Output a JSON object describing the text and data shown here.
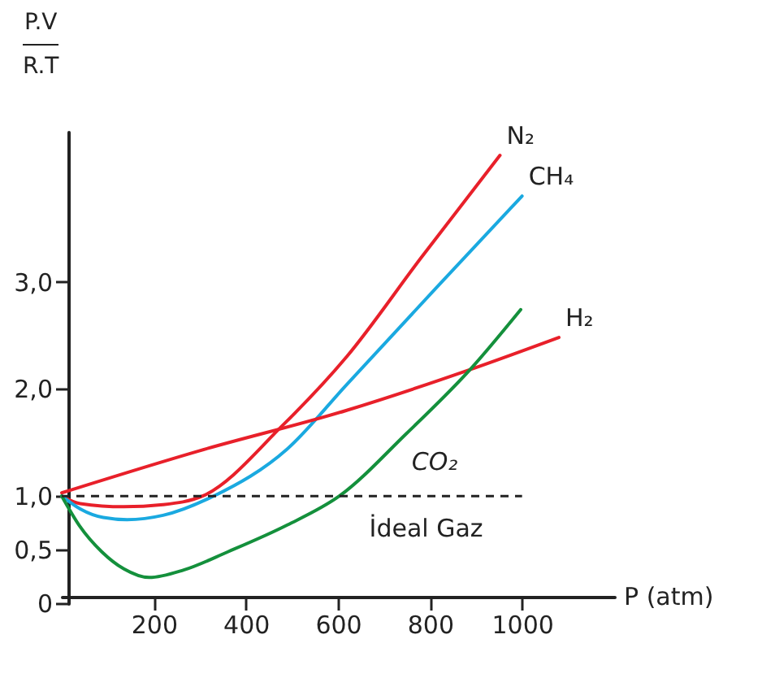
{
  "chart_data": {
    "type": "line",
    "xlabel": "P (atm)",
    "ylabel": "P.V/R.T",
    "xlim": [
      0,
      1200
    ],
    "xticks": [
      200,
      400,
      600,
      800,
      1000
    ],
    "ylim": [
      0,
      4.4
    ],
    "yticks": [
      {
        "value": 0,
        "label": "0"
      },
      {
        "value": 0.5,
        "label": "0,5"
      },
      {
        "value": 1,
        "label": "1,0"
      },
      {
        "value": 2,
        "label": "2,0"
      },
      {
        "value": 3,
        "label": "3,0"
      }
    ],
    "grid": false,
    "legend": false,
    "line_style": "solid",
    "marker": "none",
    "series": [
      {
        "name": "N₂",
        "color": "#e8202a",
        "x": [
          0,
          40,
          135,
          220,
          306,
          480,
          619,
          780,
          952
        ],
        "values": [
          1.0,
          0.93,
          0.9,
          0.92,
          1.0,
          1.66,
          2.3,
          3.22,
          4.18
        ]
      },
      {
        "name": "CH₄",
        "color": "#1aa9e0",
        "x": [
          0,
          40,
          90,
          142,
          220,
          330,
          490,
          619,
          813,
          1000
        ],
        "values": [
          1.0,
          0.88,
          0.8,
          0.78,
          0.82,
          1.0,
          1.44,
          2.04,
          2.94,
          3.8
        ]
      },
      {
        "name": "H₂",
        "color": "#e8202a",
        "x": [
          0,
          297,
          619,
          887,
          1080
        ],
        "values": [
          1.03,
          1.42,
          1.8,
          2.18,
          2.48
        ]
      },
      {
        "color": "#14903c",
        "x": [
          0,
          39,
          87,
          135,
          190,
          265,
          361,
          490,
          603,
          748,
          887,
          997
        ],
        "values": [
          1.0,
          0.72,
          0.48,
          0.32,
          0.24,
          0.31,
          0.48,
          0.73,
          1.0,
          1.58,
          2.18,
          2.74
        ]
      }
    ],
    "ref_lines": [
      {
        "axis": "y",
        "value": 1,
        "label": "İdeal Gaz",
        "line_style": "dashed",
        "color": "#222222"
      }
    ],
    "annotations": [
      "CO₂"
    ]
  }
}
